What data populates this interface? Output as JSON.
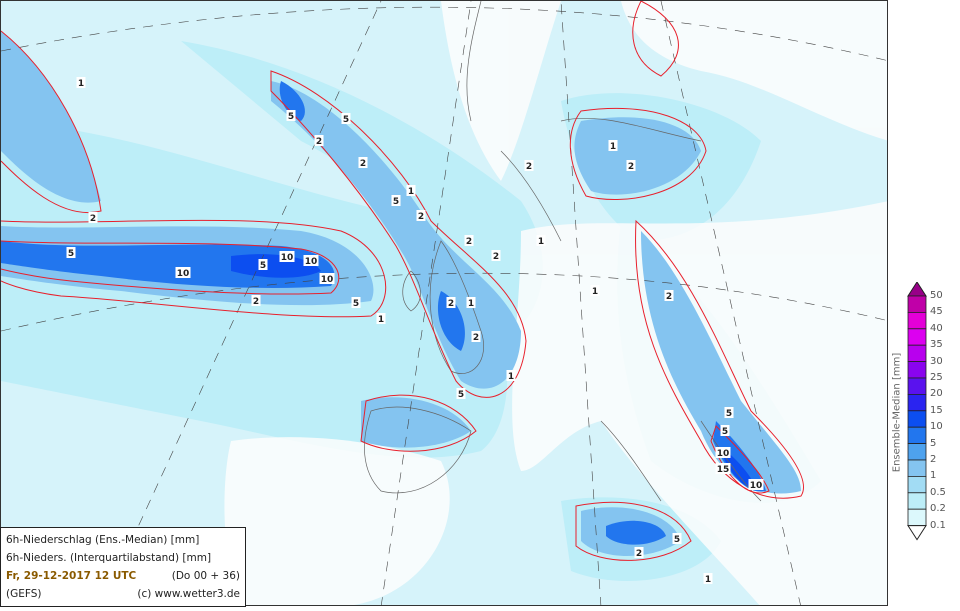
{
  "info": {
    "line1": "6h-Niederschlag (Ens.-Median) [mm]",
    "line2": "6h-Nieders. (Interquartilabstand) [mm]",
    "date": "Fr, 29-12-2017  12 UTC",
    "run": "(Do 00 + 36)",
    "model": "(GEFS)",
    "credit": "(c) www.wetter3.de"
  },
  "legend": {
    "title": "Ensemble-Median [mm]",
    "levels": [
      "0.1",
      "0.2",
      "0.5",
      "1",
      "2",
      "5",
      "10",
      "15",
      "20",
      "25",
      "30",
      "35",
      "40",
      "45",
      "50"
    ],
    "colors": [
      "#dcf8fc",
      "#bdeef8",
      "#a2dcf4",
      "#84c4f0",
      "#4ea2ee",
      "#2276ee",
      "#0c4ef0",
      "#2a24f0",
      "#5a12ee",
      "#8a04ee",
      "#b800ee",
      "#dc00f0",
      "#e400d8",
      "#c000a8",
      "#980088"
    ]
  },
  "contour_labels": [
    "1",
    "2",
    "5",
    "10",
    "5",
    "10",
    "10",
    "5",
    "10",
    "2",
    "1",
    "5",
    "2",
    "5",
    "2",
    "1",
    "2",
    "5",
    "2",
    "1",
    "2",
    "2",
    "1",
    "2",
    "5",
    "1",
    "2",
    "1",
    "2",
    "5",
    "10",
    "15",
    "10",
    "5",
    "2",
    "1",
    "2",
    "5",
    "1"
  ],
  "colors": {
    "contour": "#e8202c",
    "coast": "#666666"
  }
}
